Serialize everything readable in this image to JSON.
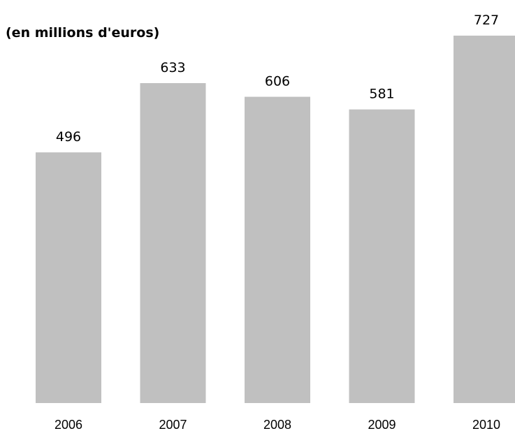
{
  "chart_data": {
    "type": "bar",
    "title": "(en millions d'euros)",
    "categories": [
      "2006",
      "2007",
      "2008",
      "2009",
      "2010"
    ],
    "values": [
      496,
      633,
      606,
      581,
      727
    ],
    "xlabel": "",
    "ylabel": "",
    "ylim": [
      0,
      727
    ],
    "grid": false,
    "bar_color": "#c0c0c0",
    "data_labels": [
      "496",
      "633",
      "606",
      "581",
      "727"
    ]
  }
}
